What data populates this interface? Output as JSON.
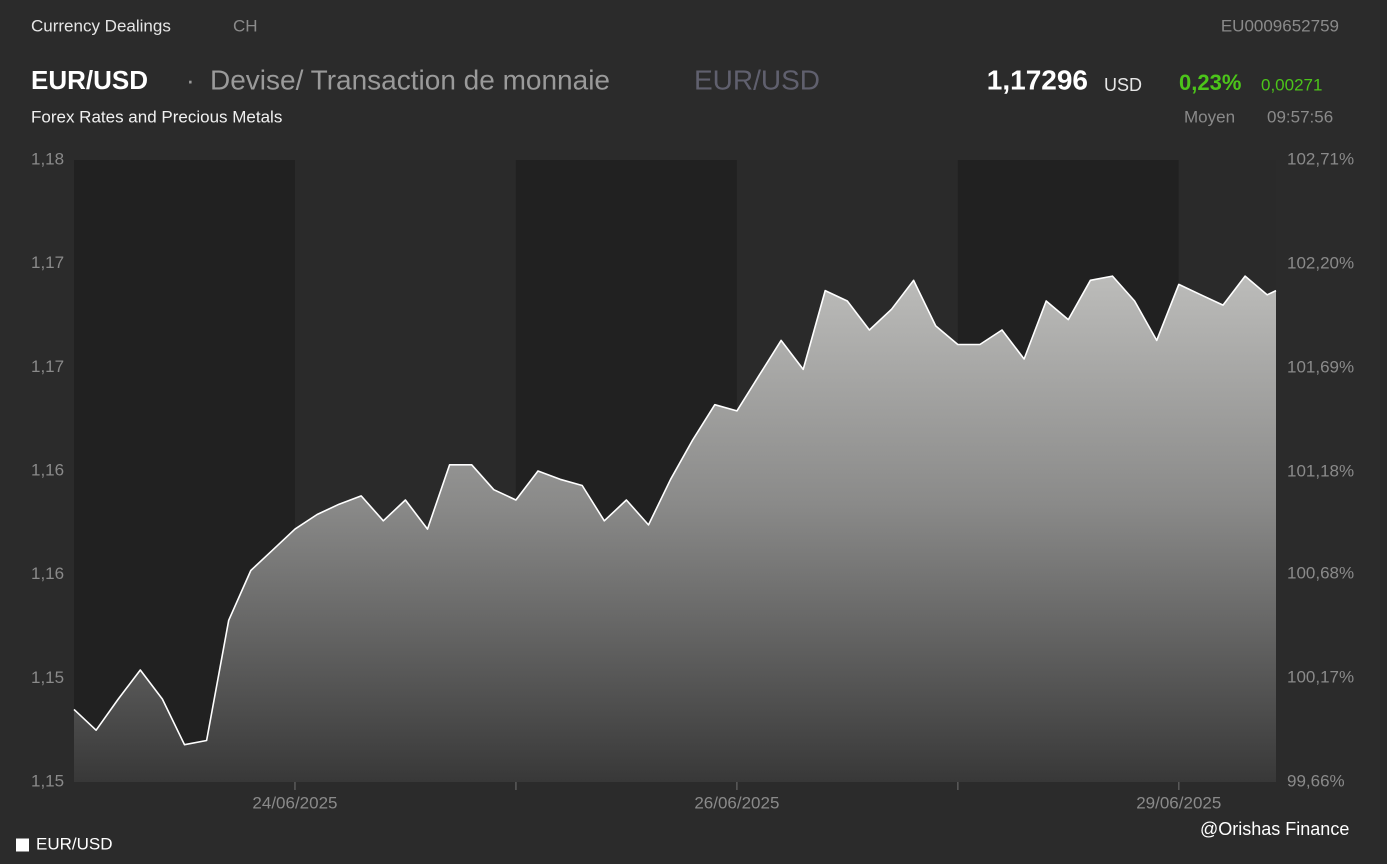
{
  "header": {
    "exchange": "Currency Dealings",
    "country": "CH",
    "isin": "EU0009652759",
    "symbol": "EUR/USD",
    "separator": "·",
    "description": "Devise/ Transaction de monnaie",
    "symbol_alt": "EUR/USD",
    "price": "1,17296",
    "currency": "USD",
    "change_percent": "0,23%",
    "change_abs": "0,00271",
    "subtitle": "Forex Rates and Precious Metals",
    "price_type": "Moyen",
    "time": "09:57:56"
  },
  "chart_data": {
    "type": "area",
    "x": [
      0,
      0.1,
      0.2,
      0.3,
      0.4,
      0.5,
      0.6,
      0.7,
      0.8,
      0.9,
      1.0,
      1.1,
      1.2,
      1.3,
      1.4,
      1.5,
      1.6,
      1.7,
      1.8,
      1.9,
      2.0,
      2.1,
      2.2,
      2.3,
      2.4,
      2.5,
      2.6,
      2.7,
      2.8,
      2.9,
      3.0,
      3.1,
      3.2,
      3.3,
      3.4,
      3.5,
      3.6,
      3.7,
      3.8,
      3.9,
      4.0,
      4.1,
      4.2,
      4.3,
      4.4,
      4.5,
      4.6,
      4.7,
      4.8,
      4.9,
      5.0,
      5.1,
      5.2,
      5.3,
      5.4,
      5.44
    ],
    "series": [
      {
        "name": "EUR/USD",
        "color": "#ffffff",
        "values": [
          1.1515,
          1.1505,
          1.152,
          1.1534,
          1.152,
          1.1498,
          1.15,
          1.1558,
          1.1582,
          1.1592,
          1.1602,
          1.1609,
          1.1614,
          1.1618,
          1.1606,
          1.1616,
          1.1602,
          1.1633,
          1.1633,
          1.1621,
          1.1616,
          1.163,
          1.1626,
          1.1623,
          1.1606,
          1.1616,
          1.1604,
          1.1626,
          1.1645,
          1.1662,
          1.1659,
          1.1676,
          1.1693,
          1.1679,
          1.1717,
          1.1712,
          1.1698,
          1.1708,
          1.1722,
          1.17,
          1.1691,
          1.1691,
          1.1698,
          1.1684,
          1.1712,
          1.1703,
          1.1722,
          1.1724,
          1.1712,
          1.1693,
          1.172,
          1.1715,
          1.171,
          1.1724,
          1.1715,
          1.1717
        ]
      }
    ],
    "xlim": [
      0,
      5.44
    ],
    "xticks": [
      {
        "value": 1,
        "label": "24/06/2025"
      },
      {
        "value": 2,
        "label": null
      },
      {
        "value": 3,
        "label": "26/06/2025"
      },
      {
        "value": 4,
        "label": null
      },
      {
        "value": 5,
        "label": "29/06/2025"
      }
    ],
    "ylim": [
      1.148,
      1.178
    ],
    "yticks": [
      {
        "value": 1.148,
        "label": "1,15"
      },
      {
        "value": 1.153,
        "label": "1,15"
      },
      {
        "value": 1.158,
        "label": "1,16"
      },
      {
        "value": 1.163,
        "label": "1,16"
      },
      {
        "value": 1.168,
        "label": "1,17"
      },
      {
        "value": 1.173,
        "label": "1,17"
      },
      {
        "value": 1.178,
        "label": "1,18"
      }
    ],
    "y2lim": [
      99.66,
      102.71
    ],
    "y2ticks": [
      {
        "value": 99.66,
        "label": "99,66%"
      },
      {
        "value": 100.17,
        "label": "100,17%"
      },
      {
        "value": 100.68,
        "label": "100,68%"
      },
      {
        "value": 101.18,
        "label": "101,18%"
      },
      {
        "value": 101.69,
        "label": "101,69%"
      },
      {
        "value": 102.2,
        "label": "102,20%"
      },
      {
        "value": 102.71,
        "label": "102,71%"
      }
    ],
    "grid": false
  },
  "watermark": "@Orishas Finance"
}
